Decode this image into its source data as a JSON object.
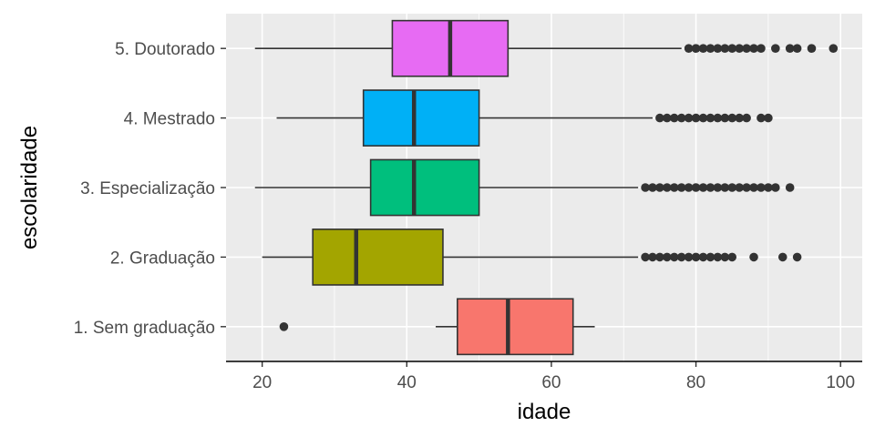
{
  "chart_data": {
    "type": "boxplot",
    "orientation": "horizontal",
    "xlabel": "idade",
    "ylabel": "escolaridade",
    "xlim": [
      15,
      103
    ],
    "x_ticks": [
      20,
      40,
      60,
      80,
      100
    ],
    "grid": true,
    "legend": "none",
    "categories": [
      "1. Sem graduação",
      "2. Graduação",
      "3. Especialização",
      "4. Mestrado",
      "5. Doutorado"
    ],
    "series": [
      {
        "category": "1. Sem graduação",
        "color": "#F8766D",
        "whisker_low": 44,
        "q1": 47,
        "median": 54,
        "q3": 63,
        "whisker_high": 66,
        "outliers": [
          23
        ]
      },
      {
        "category": "2. Graduação",
        "color": "#A3A500",
        "whisker_low": 20,
        "q1": 27,
        "median": 33,
        "q3": 45,
        "whisker_high": 72,
        "outliers": [
          73,
          74,
          75,
          76,
          77,
          78,
          79,
          80,
          81,
          82,
          83,
          84,
          85,
          88,
          92,
          94
        ]
      },
      {
        "category": "3. Especialização",
        "color": "#00BF7D",
        "whisker_low": 19,
        "q1": 35,
        "median": 41,
        "q3": 50,
        "whisker_high": 72,
        "outliers": [
          73,
          74,
          75,
          76,
          77,
          78,
          79,
          80,
          81,
          82,
          83,
          84,
          85,
          86,
          87,
          88,
          89,
          90,
          91,
          93
        ]
      },
      {
        "category": "4. Mestrado",
        "color": "#00B0F6",
        "whisker_low": 22,
        "q1": 34,
        "median": 41,
        "q3": 50,
        "whisker_high": 74,
        "outliers": [
          75,
          76,
          77,
          78,
          79,
          80,
          81,
          82,
          83,
          84,
          85,
          86,
          87,
          89,
          90
        ]
      },
      {
        "category": "5. Doutorado",
        "color": "#E76BF3",
        "whisker_low": 19,
        "q1": 38,
        "median": 46,
        "q3": 54,
        "whisker_high": 78,
        "outliers": [
          79,
          80,
          81,
          82,
          83,
          84,
          85,
          86,
          87,
          88,
          89,
          91,
          93,
          94,
          96,
          99
        ]
      }
    ]
  }
}
